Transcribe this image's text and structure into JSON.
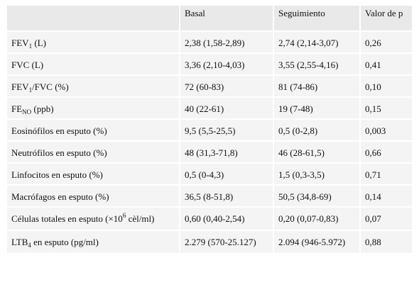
{
  "table": {
    "headers": [
      "",
      "Basal",
      "Seguimiento",
      "Valor de p"
    ],
    "rows": [
      {
        "label": [
          "FEV",
          "1",
          " (L)"
        ],
        "basal": "2,38 (1,58-2,89)",
        "seguimiento": "2,74 (2,14-3,07)",
        "p": "0,26"
      },
      {
        "label": [
          "FVC (L)"
        ],
        "basal": "3,36 (2,10-4,03)",
        "seguimiento": "3,55 (2,55-4,16)",
        "p": "0,41"
      },
      {
        "label": [
          "FEV",
          "1",
          "/FVC (%)"
        ],
        "basal": "72 (60-83)",
        "seguimiento": "81 (74-86)",
        "p": "0,10"
      },
      {
        "label": [
          "FE",
          "NO",
          " (ppb)"
        ],
        "basal": "40 (22-61)",
        "seguimiento": "19 (7-48)",
        "p": "0,15"
      },
      {
        "label": [
          "Eosinófilos en esputo (%)"
        ],
        "basal": "9,5 (5,5-25,5)",
        "seguimiento": "0,5 (0-2,8)",
        "p": "0,003"
      },
      {
        "label": [
          "Neutrófilos en esputo (%)"
        ],
        "basal": "48 (31,3-71,8)",
        "seguimiento": "46 (28-61,5)",
        "p": "0,66"
      },
      {
        "label": [
          "Linfocitos en esputo (%)"
        ],
        "basal": "0,5 (0-4,3)",
        "seguimiento": "1,5 (0,3-3,5)",
        "p": "0,71"
      },
      {
        "label": [
          "Macrófagos en esputo (%)"
        ],
        "basal": "36,5 (8-51,8)",
        "seguimiento": "50,5 (34,8-69)",
        "p": "0,14"
      },
      {
        "label": [
          "Células totales en esputo (×10",
          "6",
          " cèl/ml)"
        ],
        "basal": "0,60 (0,40-2,54)",
        "seguimiento": "0,20 (0,07-0,83)",
        "p": "0,07"
      },
      {
        "label": [
          "LTB",
          "4",
          " en esputo (pg/ml)"
        ],
        "basal": "2.279 (570-25.127)",
        "seguimiento": "2.094 (946-5.972)",
        "p": "0,88"
      }
    ]
  }
}
